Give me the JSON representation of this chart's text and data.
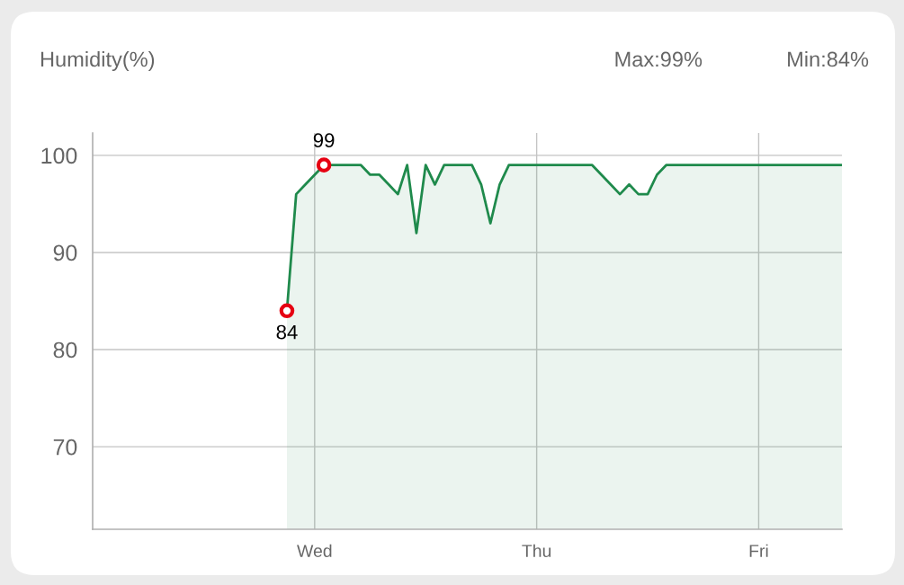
{
  "chart_data": {
    "type": "area",
    "title": "Humidity(%)",
    "annotations": [
      "Max:99%",
      "Min:84%"
    ],
    "categories": [
      null,
      null,
      null,
      null,
      null,
      null,
      null,
      null,
      null,
      null,
      null,
      null,
      null,
      null,
      null,
      null,
      null,
      null,
      null,
      null,
      null,
      null,
      null,
      null,
      "Wed",
      null,
      null,
      null,
      null,
      null,
      null,
      null,
      null,
      null,
      null,
      null,
      null,
      null,
      null,
      null,
      null,
      null,
      null,
      null,
      null,
      null,
      null,
      null,
      "Thu",
      null,
      null,
      null,
      null,
      null,
      null,
      null,
      null,
      null,
      null,
      null,
      null,
      null,
      null,
      null,
      null,
      null,
      null,
      null,
      null,
      null,
      null,
      null,
      "Fri",
      null,
      null,
      null,
      null,
      null,
      null,
      null,
      null,
      null
    ],
    "ylim": [
      61.5,
      102.3
    ],
    "yticks": [
      70,
      80,
      90,
      100
    ],
    "grid": true,
    "series": [
      {
        "color": "#1f8a4c",
        "values": [
          null,
          null,
          null,
          null,
          null,
          null,
          null,
          null,
          null,
          null,
          null,
          null,
          null,
          null,
          null,
          null,
          null,
          null,
          null,
          null,
          null,
          84,
          96,
          97,
          98,
          99,
          99,
          99,
          99,
          99,
          98,
          98,
          97,
          96,
          99,
          92,
          99,
          97,
          99,
          99,
          99,
          99,
          97,
          93,
          97,
          99,
          99,
          99,
          99,
          99,
          99,
          99,
          99,
          99,
          99,
          98,
          97,
          96,
          97,
          96,
          96,
          98,
          99,
          99,
          99,
          99,
          99,
          99,
          99,
          99,
          99,
          99,
          99,
          99,
          99,
          99,
          99,
          99,
          99,
          99,
          99,
          99
        ]
      },
      {
        "type": "scatter",
        "color": "#e60012",
        "marker": "circle",
        "values": [
          null,
          null,
          null,
          null,
          null,
          null,
          null,
          null,
          null,
          null,
          null,
          null,
          null,
          null,
          null,
          null,
          null,
          null,
          null,
          null,
          null,
          84,
          null,
          null,
          null,
          99,
          null,
          null,
          null,
          null,
          null,
          null,
          null,
          null,
          null,
          null,
          null,
          null,
          null,
          null,
          null,
          null,
          null,
          null,
          null,
          null,
          null,
          null,
          null,
          null,
          null,
          null,
          null,
          null,
          null,
          null,
          null,
          null,
          null,
          null,
          null,
          null,
          null,
          null,
          null,
          null,
          null,
          null,
          null,
          null,
          null,
          null,
          null,
          null,
          null,
          null,
          null,
          null,
          null,
          null,
          null,
          null
        ],
        "value_labels": [
          null,
          null,
          null,
          null,
          null,
          null,
          null,
          null,
          null,
          null,
          null,
          null,
          null,
          null,
          null,
          null,
          null,
          null,
          null,
          null,
          null,
          "84",
          null,
          null,
          null,
          "99",
          null,
          null,
          null,
          null,
          null,
          null,
          null,
          null,
          null,
          null,
          null,
          null,
          null,
          null,
          null,
          null,
          null,
          null,
          null,
          null,
          null,
          null,
          null,
          null,
          null,
          null,
          null,
          null,
          null,
          null,
          null,
          null,
          null,
          null,
          null,
          null,
          null,
          null,
          null,
          null,
          null,
          null,
          null,
          null,
          null,
          null,
          null,
          null,
          null,
          null,
          null,
          null,
          null,
          null,
          null,
          null
        ]
      }
    ]
  }
}
